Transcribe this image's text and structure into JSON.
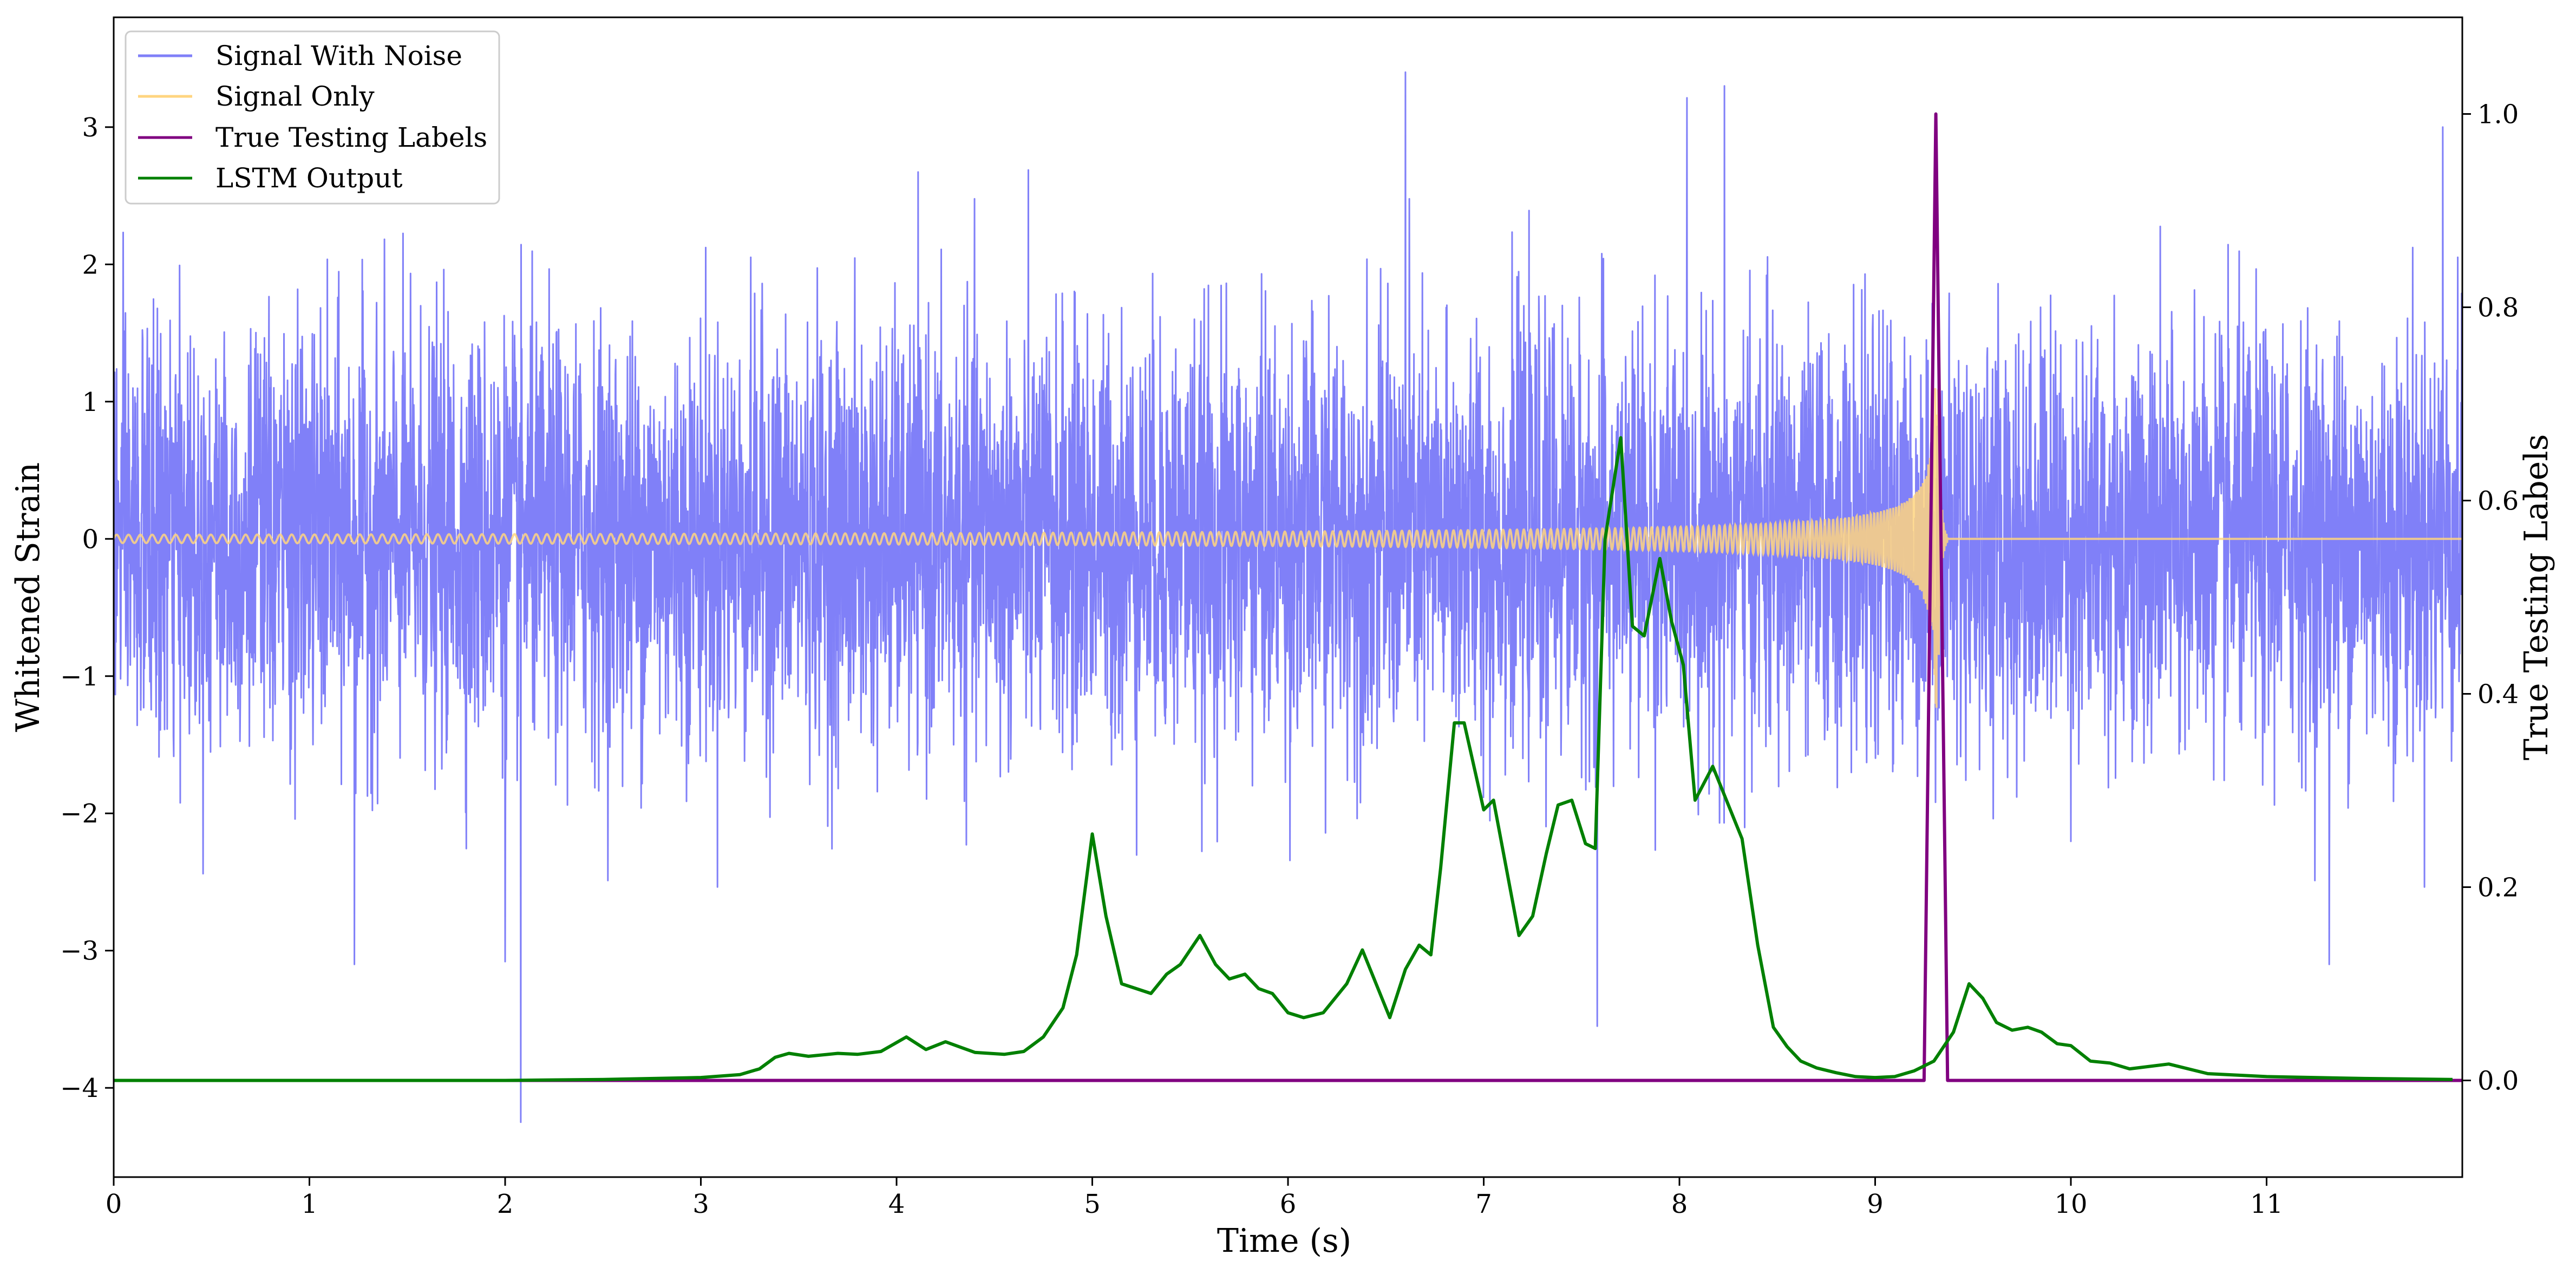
{
  "chart_data": {
    "type": "line",
    "xlabel": "Time (s)",
    "ylabel": "Whitened Strain",
    "y2label": "True Testing Labels",
    "xlim": [
      0,
      12
    ],
    "ylim": [
      -4.65,
      3.8
    ],
    "y2lim": [
      -0.1,
      1.1
    ],
    "xticks": [
      0,
      1,
      2,
      3,
      4,
      5,
      6,
      7,
      8,
      9,
      10,
      11
    ],
    "yticks": [
      -4,
      -3,
      -2,
      -1,
      0,
      1,
      2,
      3
    ],
    "y2ticks": [
      0.0,
      0.2,
      0.4,
      0.6,
      0.8,
      1.0
    ],
    "legend_position": "top-left",
    "grid": false,
    "series": [
      {
        "name": "Signal With Noise",
        "color": "#8080f8",
        "axis": "left",
        "description_x_range": [
          0,
          12
        ],
        "typical_amplitude": 0.75,
        "notable_extremes": [
          [
            2.08,
            -4.25
          ],
          [
            6.6,
            3.4
          ],
          [
            7.58,
            -3.55
          ],
          [
            8.23,
            3.3
          ],
          [
            11.9,
            3.0
          ],
          [
            11.32,
            -3.1
          ],
          [
            1.23,
            -3.1
          ],
          [
            2.0,
            -3.08
          ]
        ]
      },
      {
        "name": "Signal Only",
        "color": "#ffd580",
        "axis": "left",
        "chirp_start": 0,
        "chirp_merger": 9.32,
        "start_amplitude": 0.03,
        "peak_amplitude": 1.3
      },
      {
        "name": "True Testing Labels",
        "color": "#800080",
        "axis": "right",
        "x": [
          0,
          9.25,
          9.31,
          9.37,
          12
        ],
        "y": [
          0,
          0,
          1.0,
          0,
          0
        ]
      },
      {
        "name": "LSTM Output",
        "color": "#008000",
        "axis": "right",
        "x": [
          0,
          2.0,
          2.5,
          3.0,
          3.2,
          3.3,
          3.38,
          3.45,
          3.55,
          3.7,
          3.8,
          3.92,
          4.05,
          4.15,
          4.25,
          4.4,
          4.55,
          4.65,
          4.75,
          4.85,
          4.92,
          5.0,
          5.07,
          5.15,
          5.3,
          5.38,
          5.45,
          5.55,
          5.63,
          5.7,
          5.78,
          5.85,
          5.92,
          6.0,
          6.08,
          6.18,
          6.3,
          6.38,
          6.45,
          6.52,
          6.6,
          6.67,
          6.73,
          6.78,
          6.85,
          6.9,
          7.0,
          7.05,
          7.18,
          7.25,
          7.32,
          7.38,
          7.45,
          7.52,
          7.57,
          7.62,
          7.7,
          7.76,
          7.82,
          7.9,
          7.96,
          8.02,
          8.08,
          8.17,
          8.25,
          8.32,
          8.4,
          8.48,
          8.55,
          8.62,
          8.7,
          8.8,
          8.9,
          9.0,
          9.1,
          9.2,
          9.3,
          9.4,
          9.48,
          9.55,
          9.62,
          9.7,
          9.78,
          9.85,
          9.93,
          10.0,
          10.1,
          10.2,
          10.3,
          10.5,
          10.7,
          11.0,
          11.5,
          11.95
        ],
        "y": [
          0,
          0,
          0.001,
          0.003,
          0.006,
          0.012,
          0.024,
          0.028,
          0.025,
          0.028,
          0.027,
          0.03,
          0.045,
          0.032,
          0.04,
          0.029,
          0.027,
          0.03,
          0.045,
          0.075,
          0.13,
          0.255,
          0.17,
          0.1,
          0.09,
          0.11,
          0.12,
          0.15,
          0.12,
          0.105,
          0.11,
          0.095,
          0.09,
          0.07,
          0.065,
          0.07,
          0.1,
          0.135,
          0.1,
          0.065,
          0.115,
          0.14,
          0.13,
          0.22,
          0.37,
          0.37,
          0.28,
          0.29,
          0.15,
          0.17,
          0.235,
          0.285,
          0.29,
          0.245,
          0.24,
          0.56,
          0.665,
          0.47,
          0.46,
          0.54,
          0.475,
          0.43,
          0.29,
          0.325,
          0.285,
          0.25,
          0.14,
          0.055,
          0.035,
          0.02,
          0.013,
          0.008,
          0.004,
          0.003,
          0.004,
          0.01,
          0.02,
          0.05,
          0.1,
          0.085,
          0.06,
          0.052,
          0.055,
          0.05,
          0.038,
          0.036,
          0.02,
          0.018,
          0.012,
          0.017,
          0.007,
          0.004,
          0.002,
          0.001
        ]
      }
    ]
  }
}
